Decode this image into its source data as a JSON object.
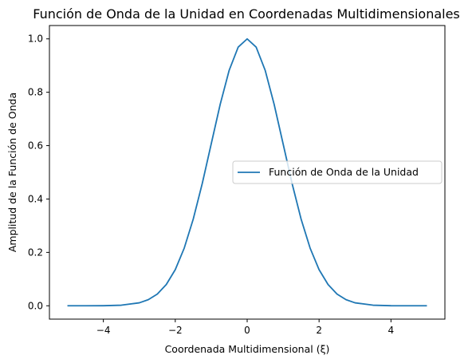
{
  "chart_data": {
    "type": "line",
    "title": "Función de Onda de la Unidad en Coordenadas Multidimensionales",
    "xlabel": "Coordenada Multidimensional (ξ)",
    "ylabel": "Amplitud de la Función de Onda",
    "xlim": [
      -5.5,
      5.5
    ],
    "ylim": [
      -0.05,
      1.05
    ],
    "xticks": [
      -4,
      -2,
      0,
      2,
      4
    ],
    "xtick_labels": [
      "−4",
      "−2",
      "0",
      "2",
      "4"
    ],
    "yticks": [
      0.0,
      0.2,
      0.4,
      0.6,
      0.8,
      1.0
    ],
    "ytick_labels": [
      "0.0",
      "0.2",
      "0.4",
      "0.6",
      "0.8",
      "1.0"
    ],
    "grid": false,
    "legend_position": "center-right",
    "series": [
      {
        "name": "Función de Onda de la Unidad",
        "color": "#1f77b4",
        "x": [
          -5.0,
          -4.5,
          -4.0,
          -3.5,
          -3.0,
          -2.75,
          -2.5,
          -2.25,
          -2.0,
          -1.75,
          -1.5,
          -1.25,
          -1.0,
          -0.75,
          -0.5,
          -0.25,
          0.0,
          0.25,
          0.5,
          0.75,
          1.0,
          1.25,
          1.5,
          1.75,
          2.0,
          2.25,
          2.5,
          2.75,
          3.0,
          3.5,
          4.0,
          4.5,
          5.0
        ],
        "y": [
          0.0,
          0.0,
          0.0003,
          0.0022,
          0.0111,
          0.0228,
          0.0439,
          0.0796,
          0.1353,
          0.2163,
          0.3247,
          0.4578,
          0.6065,
          0.7548,
          0.8825,
          0.9692,
          1.0,
          0.9692,
          0.8825,
          0.7548,
          0.6065,
          0.4578,
          0.3247,
          0.2163,
          0.1353,
          0.0796,
          0.0439,
          0.0228,
          0.0111,
          0.0022,
          0.0003,
          0.0,
          0.0
        ]
      }
    ]
  }
}
